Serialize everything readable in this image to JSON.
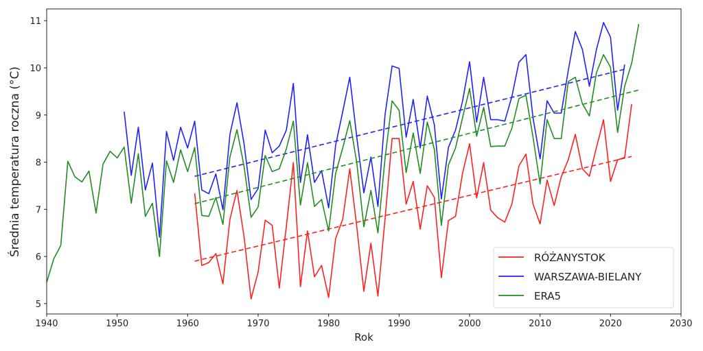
{
  "chart_data": {
    "type": "line",
    "title": "",
    "xlabel": "Rok",
    "ylabel": "Średnia temperatura roczna (°C)",
    "xlim": [
      1940,
      2030
    ],
    "ylim": [
      4.78,
      11.25
    ],
    "xticks": [
      1940,
      1950,
      1960,
      1970,
      1980,
      1990,
      2000,
      2010,
      2020,
      2030
    ],
    "xtick_labels": [
      "1940",
      "1950",
      "1960",
      "1970",
      "1980",
      "1990",
      "2000",
      "2010",
      "2020",
      "2030"
    ],
    "yticks": [
      5,
      6,
      7,
      8,
      9,
      10,
      11
    ],
    "ytick_labels": [
      "5",
      "6",
      "7",
      "8",
      "9",
      "10",
      "11"
    ],
    "grid": false,
    "legend_position": "bottom-right",
    "series": [
      {
        "name": "RÓŻANYSTOK",
        "color": "#ff2020",
        "start_year": 1961,
        "values": [
          7.34,
          5.81,
          5.87,
          6.06,
          5.42,
          6.79,
          7.4,
          6.42,
          5.1,
          5.67,
          6.77,
          6.66,
          5.33,
          6.64,
          7.99,
          5.36,
          6.54,
          5.57,
          5.81,
          5.13,
          6.38,
          6.79,
          7.86,
          6.63,
          5.26,
          6.28,
          5.16,
          6.79,
          8.5,
          8.5,
          7.11,
          7.59,
          6.58,
          7.5,
          7.25,
          5.55,
          6.76,
          6.85,
          7.76,
          8.39,
          7.24,
          7.99,
          6.98,
          6.82,
          6.73,
          7.11,
          7.92,
          8.17,
          7.11,
          6.69,
          7.62,
          7.08,
          7.69,
          8.05,
          8.59,
          7.86,
          7.7,
          8.31,
          8.9,
          7.59,
          8.05,
          8.1,
          9.23
        ],
        "trend": {
          "x": [
            1961,
            2023
          ],
          "y": [
            5.9,
            8.12
          ]
        }
      },
      {
        "name": "WARSZAWA-BIELANY",
        "color": "#1f1fff",
        "start_year": 1951,
        "values": [
          9.07,
          7.72,
          8.74,
          7.41,
          7.98,
          6.41,
          8.65,
          8.04,
          8.74,
          8.3,
          8.87,
          7.41,
          7.33,
          7.75,
          6.99,
          8.59,
          9.26,
          8.39,
          7.21,
          7.44,
          8.68,
          8.2,
          8.34,
          8.68,
          9.67,
          7.57,
          8.58,
          7.57,
          7.82,
          7.03,
          8.36,
          9.07,
          9.8,
          8.53,
          7.35,
          8.11,
          7.06,
          9.0,
          10.04,
          9.99,
          8.53,
          9.33,
          8.3,
          9.4,
          8.79,
          7.22,
          8.31,
          8.68,
          9.29,
          10.13,
          8.85,
          9.8,
          8.9,
          8.9,
          8.87,
          9.39,
          10.12,
          10.28,
          8.94,
          8.07,
          9.3,
          9.04,
          9.04,
          9.94,
          10.77,
          10.39,
          9.61,
          10.39,
          10.96,
          10.65,
          9.1,
          10.07
        ],
        "trend": {
          "x": [
            1961,
            2022
          ],
          "y": [
            7.7,
            9.97
          ]
        }
      },
      {
        "name": "ERA5",
        "color": "#228b22",
        "start_year": 1940,
        "values": [
          5.45,
          5.95,
          6.23,
          8.02,
          7.69,
          7.58,
          7.81,
          6.92,
          7.96,
          8.23,
          8.09,
          8.32,
          7.13,
          8.18,
          6.85,
          7.13,
          6.0,
          8.03,
          7.57,
          8.26,
          7.8,
          8.31,
          6.87,
          6.85,
          7.25,
          6.68,
          8.11,
          8.69,
          7.91,
          6.83,
          7.05,
          8.14,
          7.8,
          7.86,
          8.28,
          8.87,
          7.09,
          7.99,
          7.06,
          7.21,
          6.54,
          7.76,
          8.3,
          8.88,
          7.99,
          6.63,
          7.4,
          6.5,
          8.07,
          9.3,
          9.1,
          7.78,
          8.62,
          7.76,
          8.85,
          8.27,
          6.66,
          7.94,
          8.3,
          8.94,
          9.56,
          8.55,
          9.16,
          8.33,
          8.34,
          8.34,
          8.72,
          9.35,
          9.42,
          8.53,
          7.54,
          8.9,
          8.5,
          8.5,
          9.71,
          9.8,
          9.24,
          8.98,
          9.9,
          10.28,
          10.01,
          8.63,
          9.61,
          10.1,
          10.93
        ],
        "trend": {
          "x": [
            1961,
            2024
          ],
          "y": [
            7.12,
            9.53
          ]
        }
      }
    ]
  }
}
